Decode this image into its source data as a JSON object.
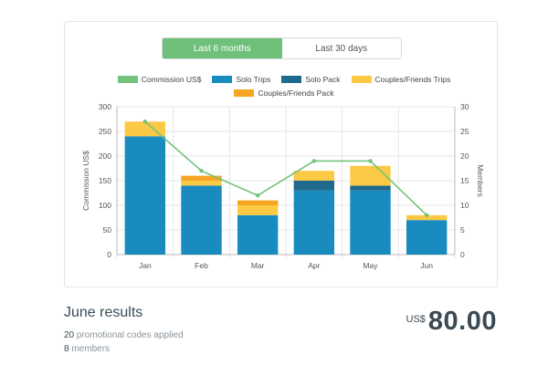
{
  "toggle": {
    "options": [
      {
        "label": "Last 6 months",
        "active": true
      },
      {
        "label": "Last 30 days",
        "active": false
      }
    ]
  },
  "chart_data": {
    "type": "bar",
    "stacked": true,
    "categories": [
      "Jan",
      "Feb",
      "Mar",
      "Apr",
      "May",
      "Jun"
    ],
    "ylabel": "Commission US$",
    "y2label": "Members",
    "ylim": [
      0,
      300
    ],
    "y2lim": [
      0,
      30
    ],
    "yticks": [
      0,
      50,
      100,
      150,
      200,
      250,
      300
    ],
    "y2ticks": [
      0,
      5,
      10,
      15,
      20,
      25,
      30
    ],
    "grid": true,
    "legend_position": "top",
    "series": [
      {
        "name": "Commission US$",
        "type": "line",
        "axis": "y",
        "color": "#72c37b",
        "values": [
          270,
          170,
          120,
          190,
          190,
          80
        ]
      },
      {
        "name": "Solo Trips",
        "type": "bar",
        "color": "#1a8bbf",
        "values": [
          240,
          140,
          80,
          130,
          130,
          70
        ]
      },
      {
        "name": "Solo Pack",
        "type": "bar",
        "color": "#1f6a8c",
        "values": [
          0,
          0,
          0,
          20,
          10,
          0
        ]
      },
      {
        "name": "Couples/Friends Trips",
        "type": "bar",
        "color": "#fcc945",
        "values": [
          30,
          10,
          20,
          20,
          40,
          10
        ]
      },
      {
        "name": "Couples/Friends Pack",
        "type": "bar",
        "color": "#f6a623",
        "values": [
          0,
          10,
          10,
          0,
          0,
          0
        ]
      }
    ]
  },
  "results": {
    "title": "June results",
    "codes_count": "20",
    "codes_text": "promotional codes applied",
    "members_count": "8",
    "members_text": "members",
    "currency": "US$",
    "amount": "80.00"
  }
}
